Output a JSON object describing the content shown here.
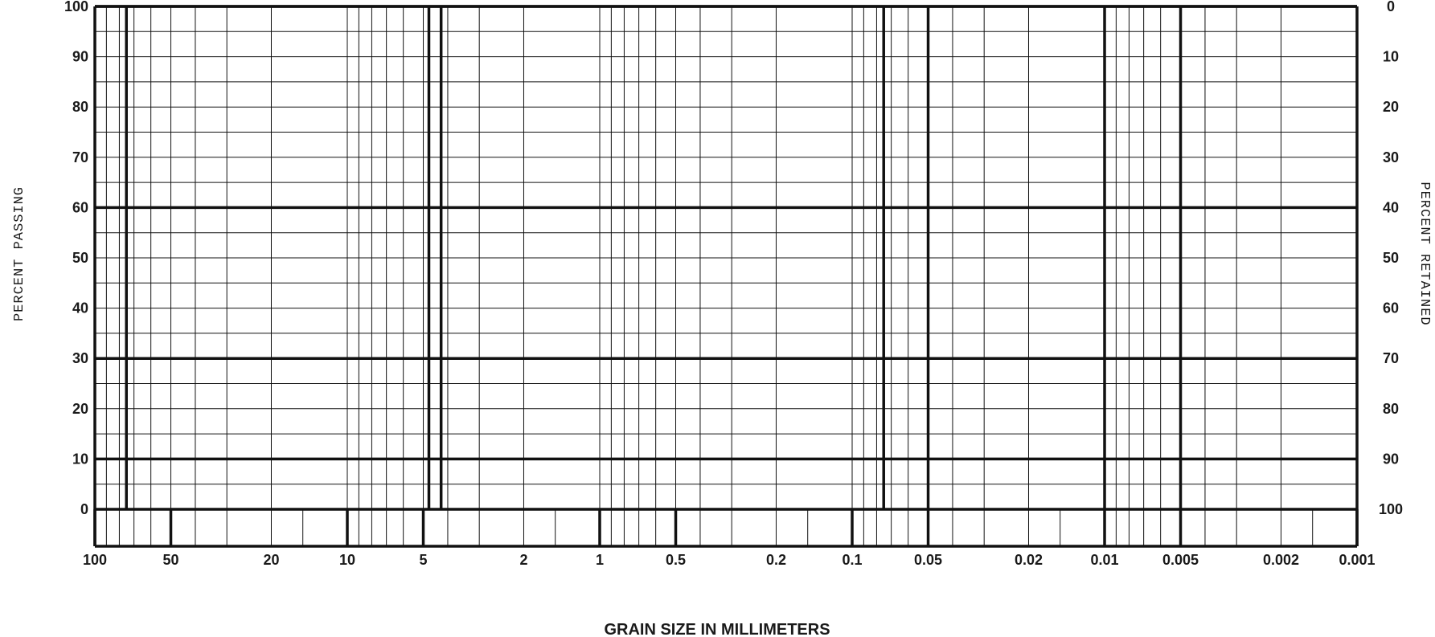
{
  "chart_data": {
    "type": "line",
    "title": "",
    "xlabel": "GRAIN SIZE IN MILLIMETERS",
    "ylabel": "PERCENT PASSING",
    "y2label": "PERCENT RETAINED",
    "x_scale": "log",
    "x_reversed": true,
    "xlim": [
      100,
      0.001
    ],
    "ylim": [
      0,
      100
    ],
    "y2lim": [
      100,
      0
    ],
    "grid": true,
    "x_tick_labels": [
      {
        "value": 100,
        "label": "100"
      },
      {
        "value": 50,
        "label": "50"
      },
      {
        "value": 20,
        "label": "20"
      },
      {
        "value": 10,
        "label": "10"
      },
      {
        "value": 5,
        "label": "5"
      },
      {
        "value": 2,
        "label": "2"
      },
      {
        "value": 1,
        "label": "1"
      },
      {
        "value": 0.5,
        "label": "0.5"
      },
      {
        "value": 0.2,
        "label": "0.2"
      },
      {
        "value": 0.1,
        "label": "0.1"
      },
      {
        "value": 0.05,
        "label": "0.05"
      },
      {
        "value": 0.02,
        "label": "0.02"
      },
      {
        "value": 0.01,
        "label": "0.01"
      },
      {
        "value": 0.005,
        "label": "0.005"
      },
      {
        "value": 0.002,
        "label": "0.002"
      },
      {
        "value": 0.001,
        "label": "0.001"
      }
    ],
    "y_tick_labels": [
      "0",
      "10",
      "20",
      "30",
      "40",
      "50",
      "60",
      "70",
      "80",
      "90",
      "100"
    ],
    "y2_tick_labels": [
      "100",
      "90",
      "80",
      "70",
      "60",
      "50",
      "40",
      "30",
      "20",
      "10",
      "0"
    ],
    "heavy_y_lines": [
      0,
      10,
      30,
      60,
      100
    ],
    "band_boundaries_mm": [
      75,
      4.75,
      4.25,
      0.075,
      0.05,
      0.01,
      0.005
    ],
    "series": []
  }
}
